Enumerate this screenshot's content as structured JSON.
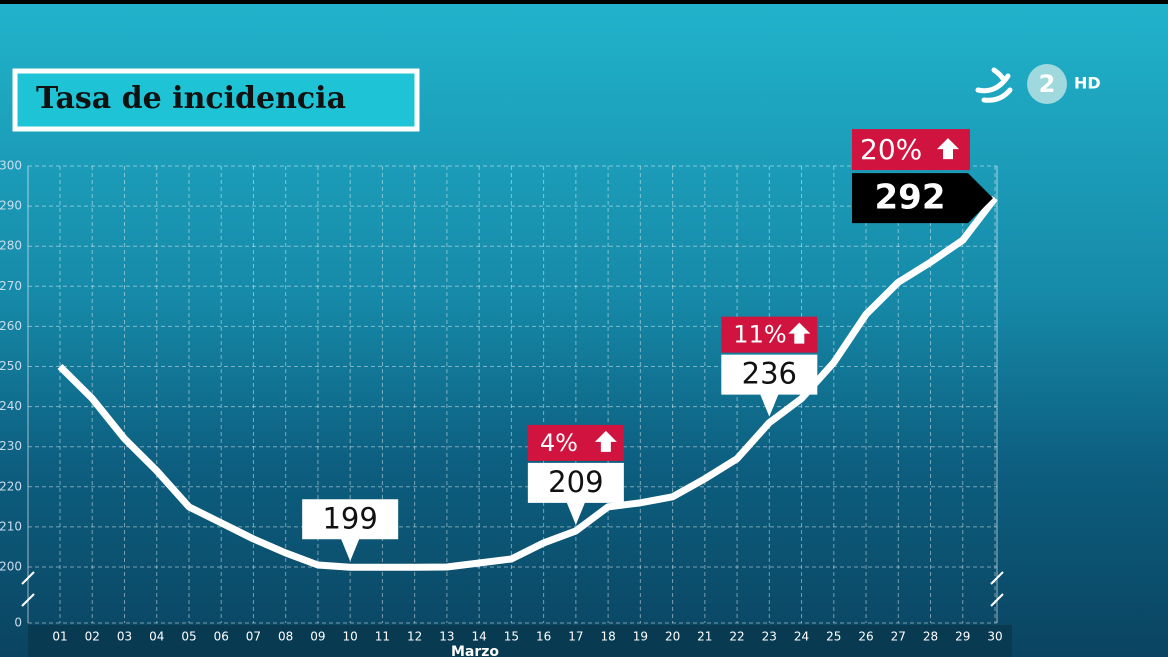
{
  "title": "Tasa de incidencia",
  "logo": {
    "channel": "2",
    "quality": "HD"
  },
  "chart_data": {
    "type": "line",
    "x_label": "Marzo",
    "categories": [
      "01",
      "02",
      "03",
      "04",
      "05",
      "06",
      "07",
      "08",
      "09",
      "10",
      "11",
      "12",
      "13",
      "14",
      "15",
      "16",
      "17",
      "18",
      "19",
      "20",
      "21",
      "22",
      "23",
      "24",
      "25",
      "26",
      "27",
      "28",
      "29",
      "30"
    ],
    "series": [
      {
        "name": "Tasa de incidencia",
        "color": "#ffffff",
        "values": [
          250,
          242,
          232,
          224,
          215,
          211,
          207,
          203.5,
          200.5,
          199,
          199,
          199,
          200,
          201,
          202,
          206,
          209,
          215,
          216,
          217.5,
          222,
          227,
          236,
          242,
          251,
          263,
          271,
          276,
          281.5,
          292
        ]
      }
    ],
    "ylim": [
      0,
      300
    ],
    "axis_break": true,
    "yticks": [
      0,
      200,
      210,
      220,
      230,
      240,
      250,
      260,
      270,
      280,
      290,
      300
    ],
    "grid": true,
    "annotations": [
      {
        "x": "10"
      },
      {
        "x": "17",
        "change": {
          "value": 4,
          "label": "4%"
        }
      },
      {
        "x": "23",
        "change": {
          "value": 11,
          "label": "11%"
        }
      },
      {
        "x": "30",
        "change": {
          "value": 20,
          "label": "20%"
        },
        "highlight": true
      }
    ]
  }
}
